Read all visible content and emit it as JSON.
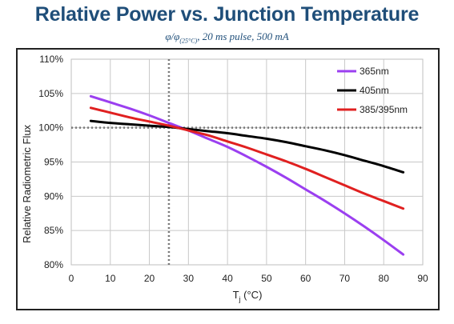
{
  "chart_data": {
    "type": "line",
    "title": "Relative Power vs. Junction Temperature",
    "subtitle": {
      "main": "φ/φ",
      "subscript": "(25°C)",
      "rest": ", 20 ms  pulse, 500 mA"
    },
    "xlabel": {
      "main": "T",
      "subscript": "j",
      "rest": " (°C)"
    },
    "ylabel": "Relative Radiometric Flux",
    "xlim": [
      0,
      90
    ],
    "ylim": [
      80,
      110
    ],
    "xticks": [
      0,
      10,
      20,
      30,
      40,
      50,
      60,
      70,
      80,
      90
    ],
    "yticks": [
      {
        "value": 80,
        "label": "80%"
      },
      {
        "value": 85,
        "label": "85%"
      },
      {
        "value": 90,
        "label": "90%"
      },
      {
        "value": 95,
        "label": "95%"
      },
      {
        "value": 100,
        "label": "100%"
      },
      {
        "value": 105,
        "label": "105%"
      },
      {
        "value": 110,
        "label": "110%"
      }
    ],
    "grid": true,
    "legend_position": "top-right",
    "reference_lines": {
      "x": 25,
      "y": 100,
      "style": "dotted"
    },
    "series": [
      {
        "name": "365nm",
        "color": "#9b3ff0",
        "x": [
          5,
          10,
          15,
          20,
          25,
          30,
          35,
          40,
          45,
          50,
          55,
          60,
          65,
          70,
          75,
          80,
          85
        ],
        "y": [
          104.6,
          103.7,
          102.8,
          101.8,
          100.7,
          99.6,
          98.4,
          97.2,
          95.8,
          94.3,
          92.7,
          91.0,
          89.3,
          87.5,
          85.6,
          83.6,
          81.5
        ]
      },
      {
        "name": "405nm",
        "color": "#000000",
        "x": [
          5,
          10,
          15,
          20,
          25,
          30,
          35,
          40,
          45,
          50,
          55,
          60,
          65,
          70,
          75,
          80,
          85
        ],
        "y": [
          101.0,
          100.7,
          100.5,
          100.3,
          100.1,
          99.8,
          99.5,
          99.2,
          98.8,
          98.4,
          97.9,
          97.3,
          96.7,
          96.0,
          95.2,
          94.4,
          93.5
        ]
      },
      {
        "name": "385/395nm",
        "color": "#e02020",
        "x": [
          5,
          10,
          15,
          20,
          25,
          30,
          35,
          40,
          45,
          50,
          55,
          60,
          65,
          70,
          75,
          80,
          85
        ],
        "y": [
          102.9,
          102.2,
          101.5,
          100.9,
          100.3,
          99.6,
          98.9,
          98.0,
          97.1,
          96.1,
          95.1,
          94.0,
          92.8,
          91.6,
          90.4,
          89.3,
          88.2
        ]
      }
    ]
  }
}
